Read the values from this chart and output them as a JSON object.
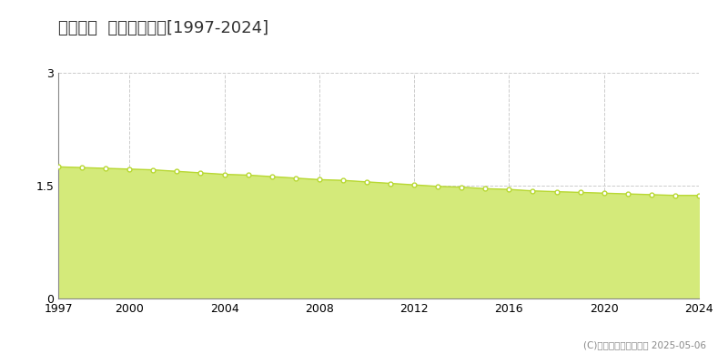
{
  "title": "東成瀬村  基準地価推移[1997-2024]",
  "years": [
    1997,
    1998,
    1999,
    2000,
    2001,
    2002,
    2003,
    2004,
    2005,
    2006,
    2007,
    2008,
    2009,
    2010,
    2011,
    2012,
    2013,
    2014,
    2015,
    2016,
    2017,
    2018,
    2019,
    2020,
    2021,
    2022,
    2023,
    2024
  ],
  "values": [
    1.75,
    1.74,
    1.73,
    1.72,
    1.71,
    1.69,
    1.67,
    1.65,
    1.64,
    1.62,
    1.6,
    1.58,
    1.57,
    1.55,
    1.53,
    1.51,
    1.49,
    1.48,
    1.46,
    1.45,
    1.43,
    1.42,
    1.41,
    1.4,
    1.39,
    1.38,
    1.37,
    1.37
  ],
  "ylim": [
    0,
    3
  ],
  "yticks": [
    0,
    1.5,
    3
  ],
  "ytick_labels": [
    "0",
    "1.5",
    "3"
  ],
  "xticks": [
    1997,
    2000,
    2004,
    2008,
    2012,
    2016,
    2020,
    2024
  ],
  "line_color": "#b8d832",
  "fill_color": "#d4ea7a",
  "marker_face_color": "#ffffff",
  "marker_edge_color": "#b8d832",
  "grid_color": "#cccccc",
  "background_color": "#ffffff",
  "legend_color": "#c8dc50",
  "copyright_text": "(C)土地価格ドットコム 2025-05-06",
  "title_fontsize": 13,
  "axis_fontsize": 9,
  "legend_fontsize": 9
}
